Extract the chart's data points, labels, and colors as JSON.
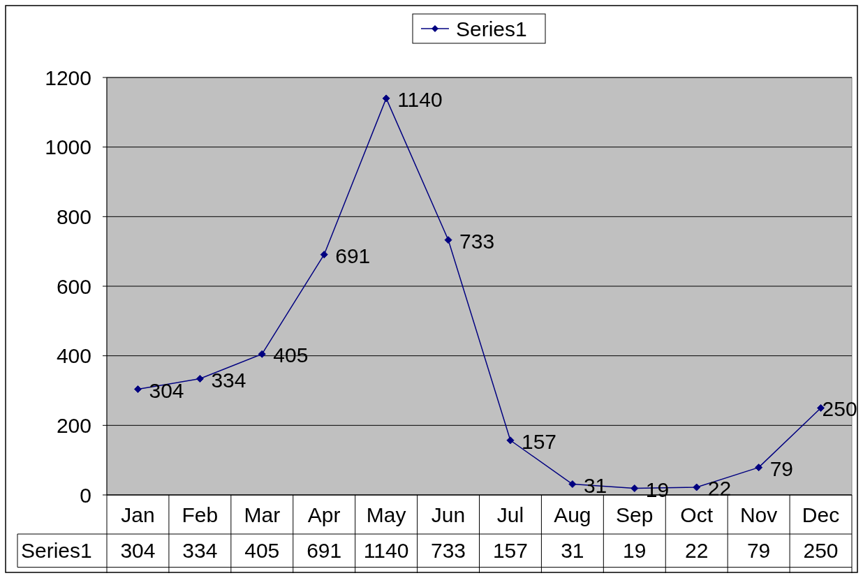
{
  "chart_data": {
    "type": "line",
    "categories": [
      "Jan",
      "Feb",
      "Mar",
      "Apr",
      "May",
      "Jun",
      "Jul",
      "Aug",
      "Sep",
      "Oct",
      "Nov",
      "Dec"
    ],
    "series": [
      {
        "name": "Series1",
        "color": "#000080",
        "values": [
          304,
          334,
          405,
          691,
          1140,
          733,
          157,
          31,
          19,
          22,
          79,
          250
        ]
      }
    ],
    "annotations": [
      {
        "text": "304",
        "x": "Jan",
        "y": 304
      },
      {
        "text": "334",
        "x": "Feb",
        "y": 334
      },
      {
        "text": "405",
        "x": "Mar",
        "y": 405
      },
      {
        "text": "691",
        "x": "Apr",
        "y": 691
      },
      {
        "text": "1140",
        "x": "May",
        "y": 1140
      },
      {
        "text": "733",
        "x": "Jun",
        "y": 733
      },
      {
        "text": "157",
        "x": "Jul",
        "y": 157
      },
      {
        "text": "31",
        "x": "Aug",
        "y": 31
      },
      {
        "text": "19",
        "x": "Sep",
        "y": 19
      },
      {
        "text": "22",
        "x": "Oct",
        "y": 22
      },
      {
        "text": "79",
        "x": "Nov",
        "y": 79
      },
      {
        "text": "250",
        "x": "Dec",
        "y": 250
      }
    ],
    "ylim": [
      0,
      1200
    ],
    "yticks": [
      0,
      200,
      400,
      600,
      800,
      1000,
      1200
    ],
    "grid": "y",
    "legend": "top",
    "marker": "diamond",
    "data_labels": true
  }
}
